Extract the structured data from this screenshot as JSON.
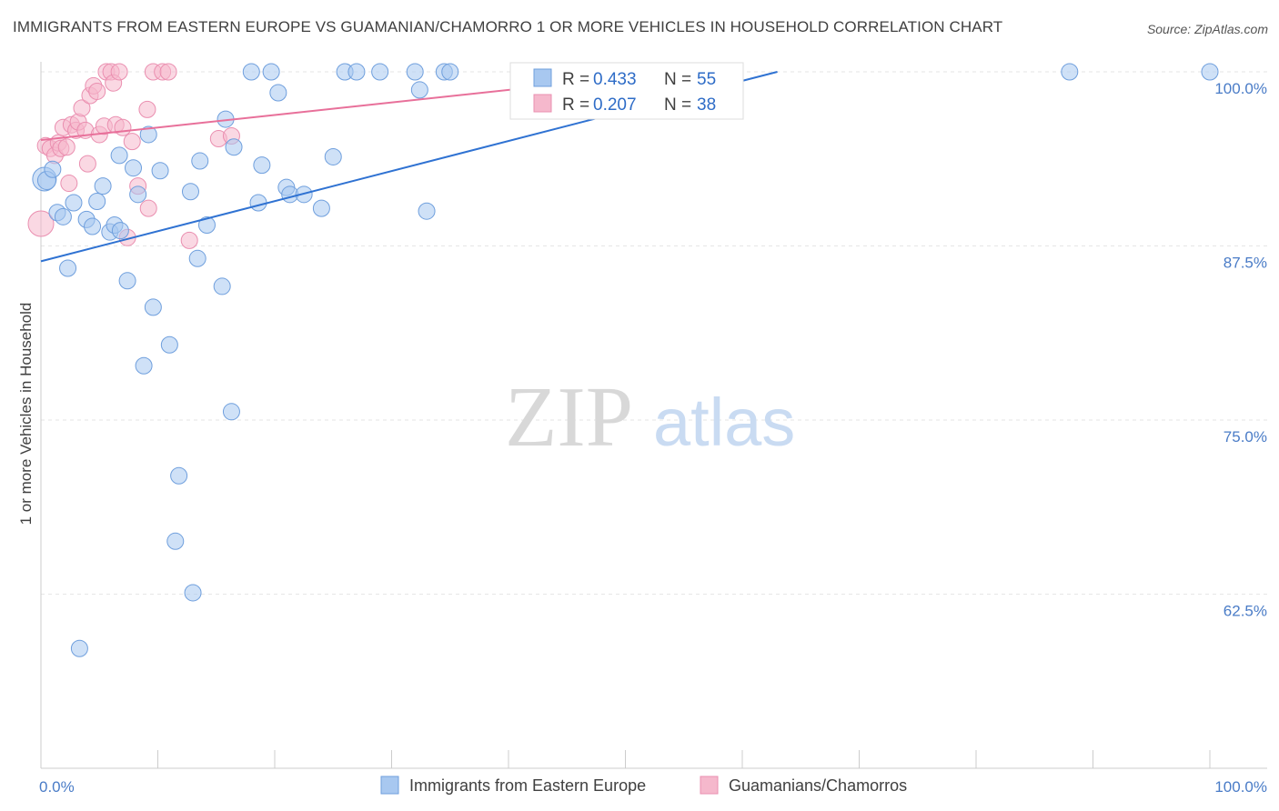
{
  "title": "IMMIGRANTS FROM EASTERN EUROPE VS GUAMANIAN/CHAMORRO 1 OR MORE VEHICLES IN HOUSEHOLD CORRELATION CHART",
  "source": "Source: ZipAtlas.com",
  "watermark": {
    "zip": "ZIP",
    "atlas": "atlas"
  },
  "colors": {
    "blue_fill": "#a8c8f0",
    "blue_stroke": "#6f9fdd",
    "blue_line": "#2f72d2",
    "pink_fill": "#f5b8cc",
    "pink_stroke": "#ea8fb0",
    "pink_line": "#e8709a",
    "tick_text": "#4a7cc7"
  },
  "legend": {
    "rows": [
      {
        "r_label": "R = ",
        "r_value": "0.433",
        "n_label": "N = ",
        "n_value": "55",
        "series": "blue"
      },
      {
        "r_label": "R = ",
        "r_value": "0.207",
        "n_label": "N = ",
        "n_value": "38",
        "series": "pink"
      }
    ]
  },
  "chart_data": {
    "type": "scatter",
    "xlabel": "",
    "ylabel": "1 or more Vehicles in Household",
    "xlim": [
      0,
      100
    ],
    "ylim": [
      50,
      100
    ],
    "x_tick_labels": [
      "0.0%",
      "100.0%"
    ],
    "y_ticks": [
      {
        "value": 100,
        "label": "100.0%"
      },
      {
        "value": 87.5,
        "label": "87.5%"
      },
      {
        "value": 75,
        "label": "75.0%"
      },
      {
        "value": 62.5,
        "label": "62.5%"
      }
    ],
    "grid": true,
    "legend_position": "bottom",
    "series": [
      {
        "name": "Immigrants from Eastern Europe",
        "color": "blue",
        "R": 0.433,
        "N": 55,
        "trend": {
          "x0": 0,
          "y0": 86.4,
          "x1": 63,
          "y1": 100
        },
        "points": [
          [
            0.3,
            92.3,
            13
          ],
          [
            0.5,
            92.2,
            10
          ],
          [
            1.4,
            89.9,
            9
          ],
          [
            1.9,
            89.6,
            9
          ],
          [
            2.3,
            85.9,
            9
          ],
          [
            2.8,
            90.6,
            9
          ],
          [
            3.3,
            58.6,
            9
          ],
          [
            3.9,
            89.4,
            9
          ],
          [
            4.4,
            88.9,
            9
          ],
          [
            4.8,
            90.7,
            9
          ],
          [
            5.3,
            91.8,
            9
          ],
          [
            5.9,
            88.5,
            9
          ],
          [
            6.3,
            89.0,
            9
          ],
          [
            6.7,
            94.0,
            9
          ],
          [
            7.4,
            85.0,
            9
          ],
          [
            7.9,
            93.1,
            9
          ],
          [
            8.3,
            91.2,
            9
          ],
          [
            8.8,
            78.9,
            9
          ],
          [
            9.2,
            95.5,
            9
          ],
          [
            9.6,
            83.1,
            9
          ],
          [
            10.2,
            92.9,
            9
          ],
          [
            11.0,
            80.4,
            9
          ],
          [
            11.8,
            71.0,
            9
          ],
          [
            11.5,
            66.3,
            9
          ],
          [
            12.8,
            91.4,
            9
          ],
          [
            13.0,
            62.6,
            9
          ],
          [
            13.4,
            86.6,
            9
          ],
          [
            13.6,
            93.6,
            9
          ],
          [
            14.2,
            89.0,
            9
          ],
          [
            15.5,
            84.6,
            9
          ],
          [
            15.8,
            96.6,
            9
          ],
          [
            16.3,
            75.6,
            9
          ],
          [
            16.5,
            94.6,
            9
          ],
          [
            18.0,
            100.0,
            9
          ],
          [
            18.6,
            90.6,
            9
          ],
          [
            18.9,
            93.3,
            9
          ],
          [
            19.7,
            100.0,
            9
          ],
          [
            20.3,
            98.5,
            9
          ],
          [
            21.0,
            91.7,
            9
          ],
          [
            21.3,
            91.2,
            9
          ],
          [
            22.5,
            91.2,
            9
          ],
          [
            24.0,
            90.2,
            9
          ],
          [
            25.0,
            93.9,
            9
          ],
          [
            26.0,
            100.0,
            9
          ],
          [
            27.0,
            100.0,
            9
          ],
          [
            29.0,
            100.0,
            9
          ],
          [
            32.0,
            100.0,
            9
          ],
          [
            32.4,
            98.7,
            9
          ],
          [
            33.0,
            90.0,
            9
          ],
          [
            34.5,
            100.0,
            9
          ],
          [
            35.0,
            100.0,
            9
          ],
          [
            88.0,
            100.0,
            9
          ],
          [
            100.0,
            100.0,
            9
          ],
          [
            1.0,
            93.0,
            9
          ],
          [
            6.8,
            88.6,
            9
          ]
        ]
      },
      {
        "name": "Guamanians/Chamorros",
        "color": "pink",
        "R": 0.207,
        "N": 38,
        "trend": {
          "x0": 0,
          "y0": 95.1,
          "x1": 50,
          "y1": 99.6
        },
        "points": [
          [
            0.0,
            89.1,
            14
          ],
          [
            0.4,
            94.7,
            9
          ],
          [
            0.8,
            94.5,
            9
          ],
          [
            1.2,
            94.0,
            9
          ],
          [
            1.5,
            94.9,
            9
          ],
          [
            1.7,
            94.5,
            9
          ],
          [
            1.9,
            96.0,
            9
          ],
          [
            2.2,
            94.6,
            9
          ],
          [
            2.4,
            92.0,
            9
          ],
          [
            2.6,
            96.2,
            9
          ],
          [
            3.0,
            95.8,
            9
          ],
          [
            3.2,
            96.4,
            9
          ],
          [
            3.5,
            97.4,
            9
          ],
          [
            3.8,
            95.8,
            9
          ],
          [
            4.0,
            93.4,
            9
          ],
          [
            4.2,
            98.3,
            9
          ],
          [
            4.5,
            99.0,
            9
          ],
          [
            4.8,
            98.6,
            9
          ],
          [
            5.0,
            95.5,
            9
          ],
          [
            5.4,
            96.1,
            9
          ],
          [
            5.6,
            100.0,
            9
          ],
          [
            6.0,
            100.0,
            9
          ],
          [
            6.2,
            99.2,
            9
          ],
          [
            6.4,
            96.2,
            9
          ],
          [
            6.7,
            100.0,
            9
          ],
          [
            7.0,
            96.0,
            9
          ],
          [
            7.4,
            88.1,
            9
          ],
          [
            7.8,
            95.0,
            9
          ],
          [
            8.3,
            91.8,
            9
          ],
          [
            9.1,
            97.3,
            9
          ],
          [
            9.2,
            90.2,
            9
          ],
          [
            9.6,
            100.0,
            9
          ],
          [
            10.4,
            100.0,
            9
          ],
          [
            10.9,
            100.0,
            9
          ],
          [
            12.7,
            87.9,
            9
          ],
          [
            15.2,
            95.2,
            9
          ],
          [
            16.3,
            95.4,
            9
          ],
          [
            47.0,
            100.0,
            9
          ]
        ]
      }
    ]
  }
}
